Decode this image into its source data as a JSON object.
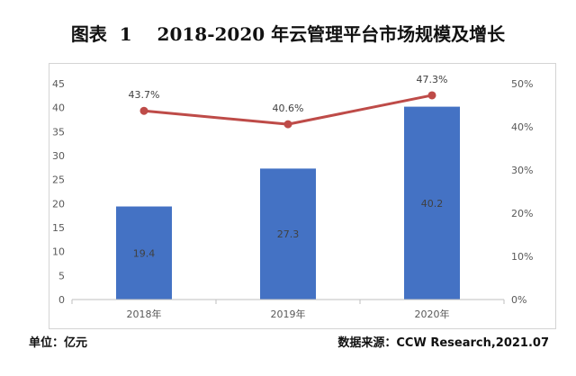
{
  "title": "图表  1    2018-2020 年云管理平台市场规模及增长",
  "footer": {
    "unit": "单位：亿元",
    "source": "数据来源：CCW Research,2021.07"
  },
  "colors": {
    "bar": "#4472C4",
    "line": "#BE4B48",
    "axis_text": "#595959",
    "bar_label": "#404040"
  },
  "chart_data": {
    "type": "bar+line",
    "categories": [
      "2018年",
      "2019年",
      "2020年"
    ],
    "series": [
      {
        "type": "bar",
        "axis": "left",
        "values": [
          19.4,
          27.3,
          40.2
        ],
        "labels": [
          "19.4",
          "27.3",
          "40.2"
        ]
      },
      {
        "type": "line",
        "axis": "right",
        "values": [
          43.7,
          40.6,
          47.3
        ],
        "labels": [
          "43.7%",
          "40.6%",
          "47.3%"
        ]
      }
    ],
    "left_axis": {
      "min": 0,
      "max": 45,
      "ticks": [
        "0",
        "5",
        "10",
        "15",
        "20",
        "25",
        "30",
        "35",
        "40",
        "45"
      ]
    },
    "right_axis": {
      "min": 0,
      "max": 50,
      "ticks": [
        "0%",
        "10%",
        "20%",
        "30%",
        "40%",
        "50%"
      ]
    },
    "grid": false,
    "legend": "none"
  }
}
